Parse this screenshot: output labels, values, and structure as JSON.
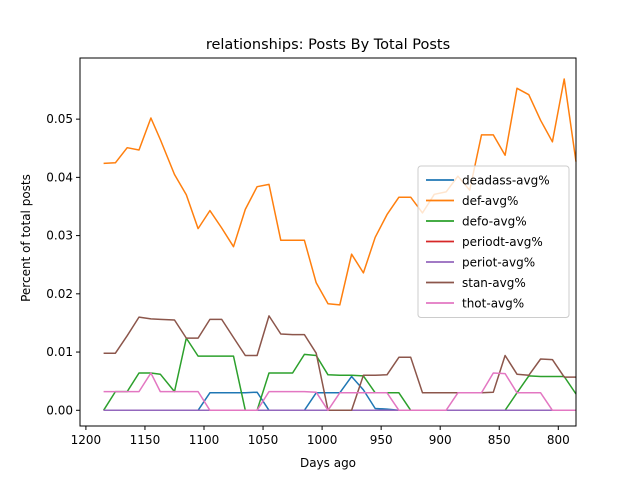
{
  "chart_data": {
    "type": "line",
    "title": "relationships: Posts By Total Posts",
    "xlabel": "Days ago",
    "ylabel": "Percent of total posts",
    "xlim": [
      1205,
      785
    ],
    "ylim": [
      -0.0027,
      0.0605
    ],
    "x_reversed": true,
    "grid": false,
    "legend_position": "center-right",
    "xticks": [
      1200,
      1150,
      1100,
      1050,
      1000,
      950,
      900,
      850,
      800
    ],
    "yticks": [
      0.0,
      0.01,
      0.02,
      0.03,
      0.04,
      0.05
    ],
    "ytick_labels": [
      "0.00",
      "0.01",
      "0.02",
      "0.03",
      "0.04",
      "0.05"
    ],
    "x": [
      1185,
      1175,
      1165,
      1155,
      1145,
      1137,
      1125,
      1115,
      1105,
      1095,
      1085,
      1075,
      1065,
      1055,
      1045,
      1035,
      1025,
      1015,
      1005,
      995,
      985,
      975,
      965,
      955,
      945,
      935,
      925,
      915,
      905,
      895,
      885,
      875,
      865,
      855,
      845,
      835,
      825,
      815,
      805,
      795,
      785
    ],
    "series": [
      {
        "name": "deadass-avg%",
        "color": "#1f77b4",
        "values": [
          0,
          0,
          0,
          0,
          0,
          0,
          0,
          0,
          0,
          0.003,
          0.003,
          0.003,
          0.003,
          0.0031,
          0,
          0,
          0,
          0,
          0.003,
          0.003,
          0.003,
          0.0058,
          0.0035,
          0.0003,
          0.0002,
          0,
          0,
          0,
          0,
          0,
          0,
          0,
          0,
          0,
          0,
          0,
          0,
          0,
          0,
          0,
          0
        ]
      },
      {
        "name": "def-avg%",
        "color": "#ff7f0e",
        "values": [
          0.0424,
          0.0425,
          0.0451,
          0.0447,
          0.0502,
          0.0465,
          0.0405,
          0.037,
          0.0312,
          0.0343,
          0.0313,
          0.0281,
          0.0345,
          0.0384,
          0.0388,
          0.0292,
          0.0292,
          0.0292,
          0.0219,
          0.0183,
          0.0181,
          0.0268,
          0.0236,
          0.0297,
          0.0336,
          0.0366,
          0.0366,
          0.0339,
          0.0371,
          0.0375,
          0.0402,
          0.0378,
          0.0473,
          0.0473,
          0.0438,
          0.0553,
          0.0542,
          0.0498,
          0.0461,
          0.0569,
          0.0427
        ]
      },
      {
        "name": "defo-avg%",
        "color": "#2ca02c",
        "values": [
          0,
          0.0032,
          0.0032,
          0.0064,
          0.0064,
          0.0062,
          0.0032,
          0.0124,
          0.0093,
          0.0093,
          0.0093,
          0.0093,
          0,
          0,
          0.0064,
          0.0064,
          0.0064,
          0.0096,
          0.0094,
          0.0061,
          0.006,
          0.006,
          0.0059,
          0.003,
          0.003,
          0.003,
          0,
          0,
          0,
          0,
          0,
          0,
          0,
          0,
          0,
          0.003,
          0.0059,
          0.0058,
          0.0058,
          0.0058,
          0.0028
        ]
      },
      {
        "name": "periodt-avg%",
        "color": "#d62728",
        "values": [
          0,
          0,
          0,
          0,
          0,
          0,
          0,
          0,
          0,
          0,
          0,
          0,
          0,
          0,
          0,
          0,
          0,
          0,
          0,
          0,
          0,
          0,
          0,
          0,
          0,
          0,
          0,
          0,
          0,
          0,
          0,
          0,
          0,
          0,
          0,
          0,
          0,
          0,
          0,
          0,
          0
        ]
      },
      {
        "name": "periot-avg%",
        "color": "#9467bd",
        "values": [
          0,
          0,
          0,
          0,
          0,
          0,
          0,
          0,
          0,
          0,
          0,
          0,
          0,
          0,
          0,
          0,
          0,
          0,
          0,
          0,
          0,
          0,
          0,
          0,
          0,
          0,
          0,
          0,
          0,
          0,
          0,
          0,
          0,
          0,
          0,
          0,
          0,
          0,
          0,
          0,
          0
        ]
      },
      {
        "name": "stan-avg%",
        "color": "#8c564b",
        "values": [
          0.0098,
          0.0098,
          0.0128,
          0.016,
          0.0157,
          0.0156,
          0.0155,
          0.0124,
          0.0124,
          0.0156,
          0.0156,
          0.0125,
          0.0094,
          0.0094,
          0.0162,
          0.0131,
          0.013,
          0.013,
          0.0098,
          0,
          0,
          0,
          0.006,
          0.006,
          0.0061,
          0.0091,
          0.0091,
          0.003,
          0.003,
          0.003,
          0.003,
          0.003,
          0.003,
          0.0031,
          0.0094,
          0.0062,
          0.006,
          0.0088,
          0.0087,
          0.0057,
          0.0057
        ]
      },
      {
        "name": "thot-avg%",
        "color": "#e377c2",
        "values": [
          0.0032,
          0.0032,
          0.0032,
          0.0032,
          0.0064,
          0.0032,
          0.0032,
          0.0032,
          0.0032,
          0,
          0,
          0,
          0,
          0,
          0.0032,
          0.0032,
          0.0032,
          0.0032,
          0.0031,
          0,
          0.003,
          0.003,
          0.003,
          0.003,
          0.003,
          0,
          0,
          0,
          0,
          0,
          0.003,
          0.003,
          0.003,
          0.0064,
          0.0063,
          0.003,
          0.003,
          0.003,
          0,
          0,
          0
        ]
      }
    ]
  }
}
